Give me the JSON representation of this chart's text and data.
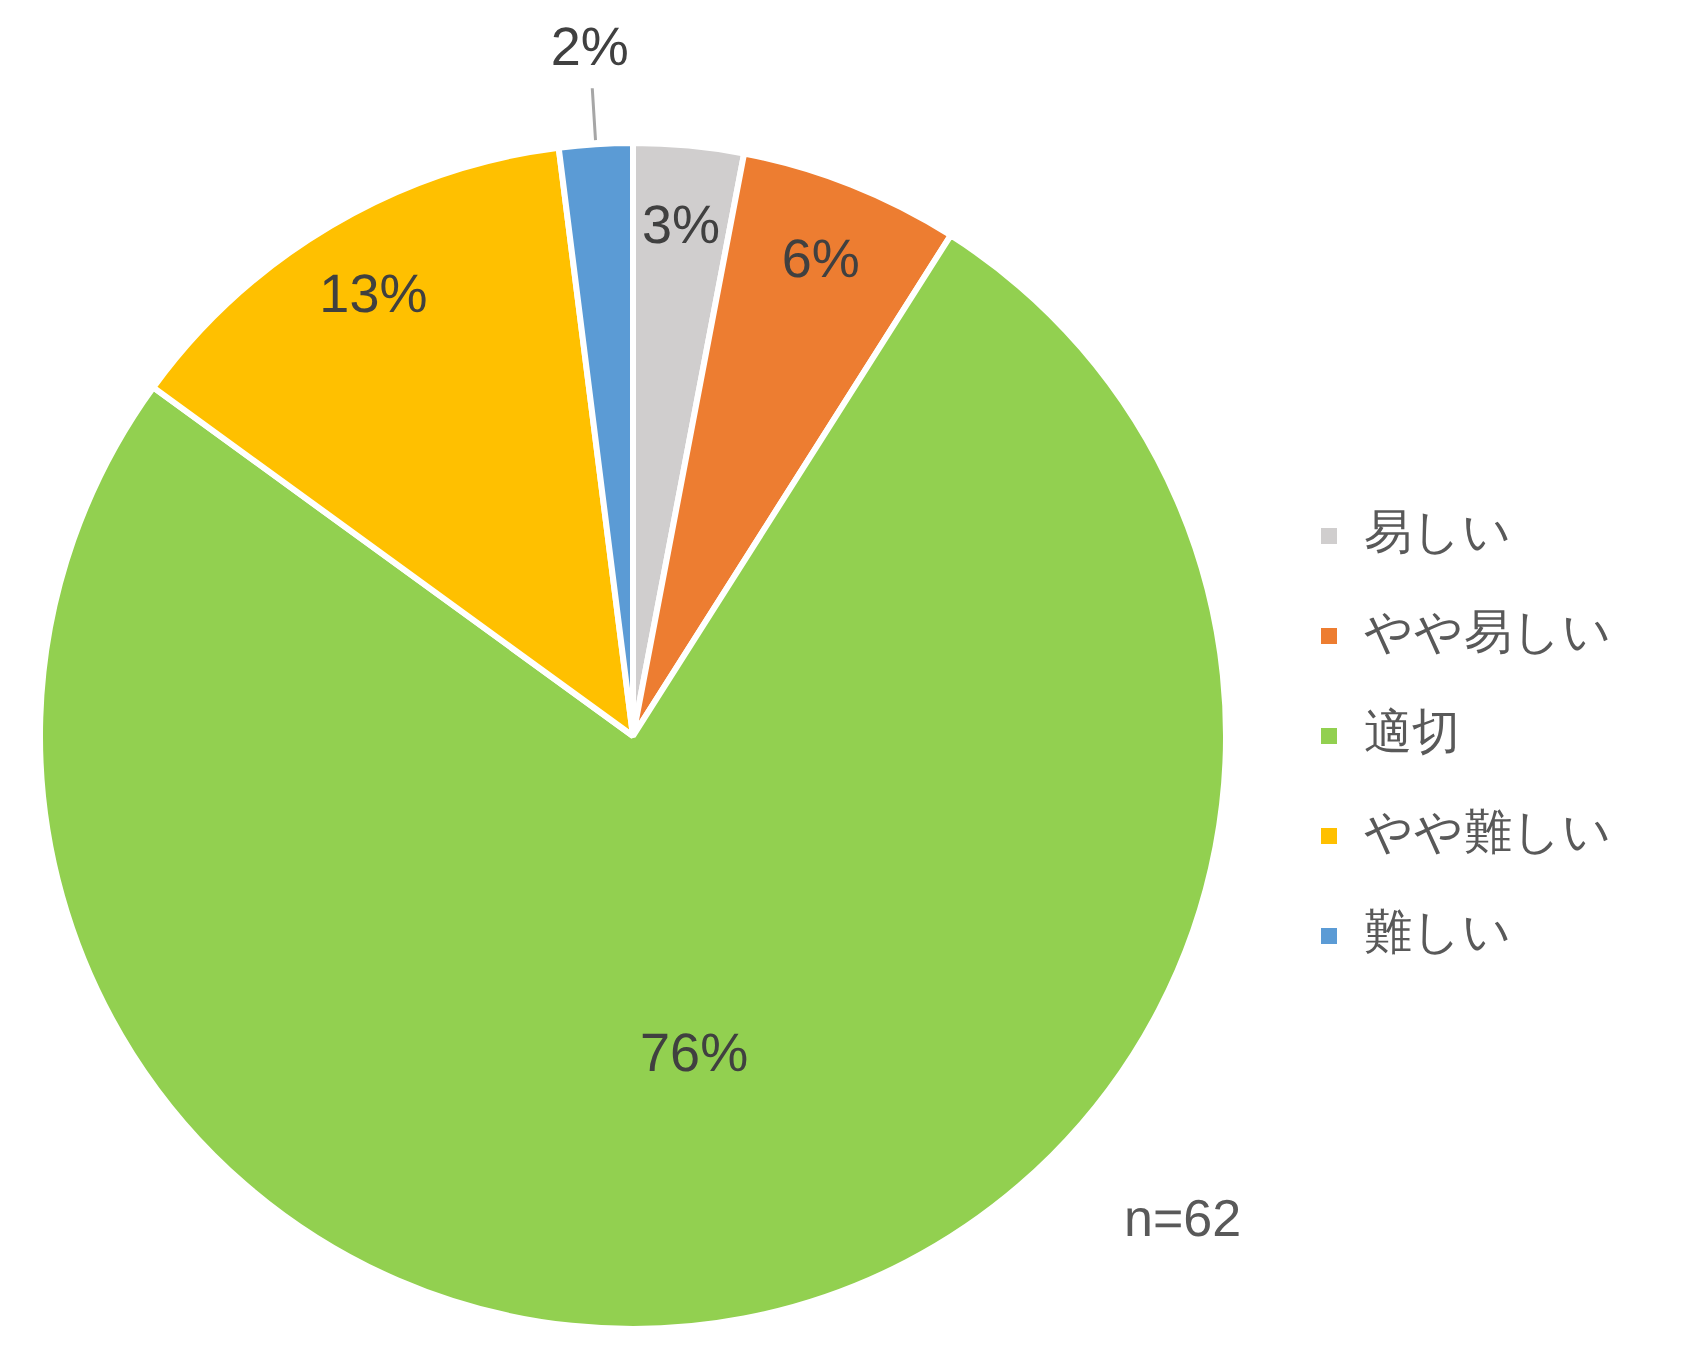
{
  "chart_data": {
    "type": "pie",
    "categories": [
      "易しい",
      "やや易しい",
      "適切",
      "やや難しい",
      "難しい"
    ],
    "values": [
      3,
      6,
      76,
      13,
      2
    ],
    "colors": [
      "#d0cece",
      "#ed7d31",
      "#92d050",
      "#ffc000",
      "#5b9bd5"
    ],
    "value_labels": [
      "3%",
      "6%",
      "76%",
      "13%",
      "2%"
    ],
    "legend": "right",
    "annotations": [
      "n=62"
    ]
  }
}
